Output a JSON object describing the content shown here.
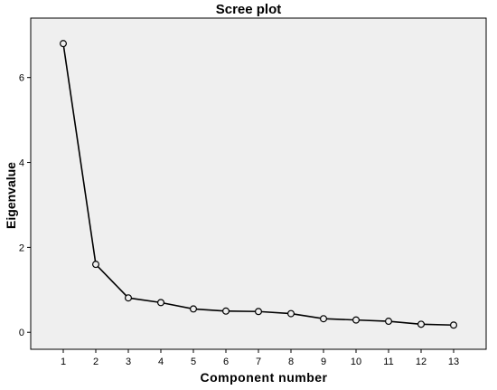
{
  "chart_data": {
    "type": "line",
    "title": "Scree plot",
    "xlabel": "Component number",
    "ylabel": "Eigenvalue",
    "x": [
      1,
      2,
      3,
      4,
      5,
      6,
      7,
      8,
      9,
      10,
      11,
      12,
      13
    ],
    "series": [
      {
        "values": [
          6.8,
          1.6,
          0.81,
          0.7,
          0.55,
          0.5,
          0.49,
          0.44,
          0.32,
          0.29,
          0.26,
          0.19,
          0.17
        ]
      }
    ],
    "xticks": [
      1,
      2,
      3,
      4,
      5,
      6,
      7,
      8,
      9,
      10,
      11,
      12,
      13
    ],
    "yticks": [
      0,
      2,
      4,
      6
    ],
    "xlim": [
      0,
      14
    ],
    "ylim": [
      -0.4,
      7.4
    ],
    "grid": false,
    "marker": "open-circle",
    "colors": {
      "line": "#000000",
      "plot_background": "#efefef",
      "frame": "#000000"
    }
  }
}
